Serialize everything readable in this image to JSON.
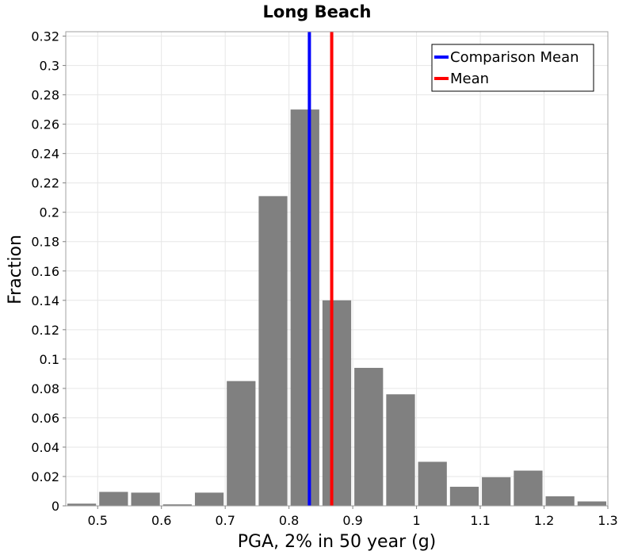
{
  "chart_data": {
    "type": "bar",
    "title": "Long Beach",
    "xlabel": "PGA, 2% in 50 year (g)",
    "ylabel": "Fraction",
    "xlim": [
      0.45,
      1.3
    ],
    "ylim": [
      0,
      0.323
    ],
    "xticks": [
      0.5,
      0.6,
      0.7,
      0.8,
      0.9,
      1.0,
      1.1,
      1.2,
      1.3
    ],
    "xtick_labels": [
      "0.5",
      "0.6",
      "0.7",
      "0.8",
      "0.9",
      "1",
      "1.1",
      "1.2",
      "1.3"
    ],
    "yticks": [
      0,
      0.02,
      0.04,
      0.06,
      0.08,
      0.1,
      0.12,
      0.14,
      0.16,
      0.18,
      0.2,
      0.22,
      0.24,
      0.26,
      0.28,
      0.3,
      0.32
    ],
    "ytick_labels": [
      "0",
      "0.02",
      "0.04",
      "0.06",
      "0.08",
      "0.1",
      "0.12",
      "0.14",
      "0.16",
      "0.18",
      "0.2",
      "0.22",
      "0.24",
      "0.26",
      "0.28",
      "0.3",
      "0.32"
    ],
    "bin_width": 0.05,
    "bin_centers": [
      0.475,
      0.525,
      0.575,
      0.625,
      0.675,
      0.725,
      0.775,
      0.825,
      0.875,
      0.925,
      0.975,
      1.025,
      1.075,
      1.125,
      1.175,
      1.225,
      1.275
    ],
    "values": [
      0.0015,
      0.0095,
      0.009,
      0.001,
      0.009,
      0.085,
      0.211,
      0.27,
      0.14,
      0.094,
      0.076,
      0.03,
      0.013,
      0.0195,
      0.024,
      0.0065,
      0.003
    ],
    "bar_color": "#808080",
    "vlines": [
      {
        "name": "Comparison Mean",
        "x": 0.832,
        "color": "#0000ff"
      },
      {
        "name": "Mean",
        "x": 0.867,
        "color": "#ff0000"
      }
    ],
    "legend_position": "top-right",
    "grid": true
  }
}
